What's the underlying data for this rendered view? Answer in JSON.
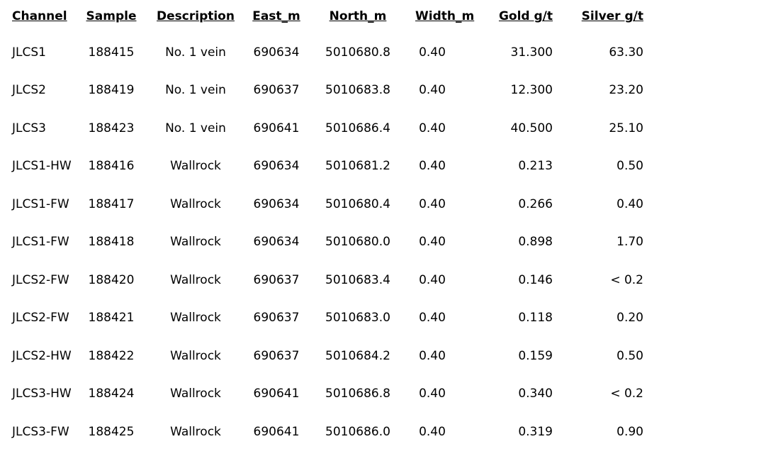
{
  "colors": {
    "text": "#000000",
    "background": "#ffffff"
  },
  "table": {
    "columns": [
      {
        "key": "channel",
        "label": "Channel"
      },
      {
        "key": "sample",
        "label": "Sample"
      },
      {
        "key": "description",
        "label": "Description"
      },
      {
        "key": "east_m",
        "label": "East_m"
      },
      {
        "key": "north_m",
        "label": "North_m"
      },
      {
        "key": "width_m",
        "label": "Width_m"
      },
      {
        "key": "gold_gpt",
        "label": "Gold g/t"
      },
      {
        "key": "silver_gpt",
        "label": "Silver g/t"
      }
    ],
    "rows": [
      [
        "JLCS1",
        "188415",
        "No. 1 vein",
        "690634",
        "5010680.8",
        "0.40",
        "31.300",
        "63.30"
      ],
      [
        "JLCS2",
        "188419",
        "No. 1 vein",
        "690637",
        "5010683.8",
        "0.40",
        "12.300",
        "23.20"
      ],
      [
        "JLCS3",
        "188423",
        "No. 1 vein",
        "690641",
        "5010686.4",
        "0.40",
        "40.500",
        "25.10"
      ],
      [
        "JLCS1-HW",
        "188416",
        "Wallrock",
        "690634",
        "5010681.2",
        "0.40",
        "0.213",
        "0.50"
      ],
      [
        "JLCS1-FW",
        "188417",
        "Wallrock",
        "690634",
        "5010680.4",
        "0.40",
        "0.266",
        "0.40"
      ],
      [
        "JLCS1-FW",
        "188418",
        "Wallrock",
        "690634",
        "5010680.0",
        "0.40",
        "0.898",
        "1.70"
      ],
      [
        "JLCS2-FW",
        "188420",
        "Wallrock",
        "690637",
        "5010683.4",
        "0.40",
        "0.146",
        "< 0.2"
      ],
      [
        "JLCS2-FW",
        "188421",
        "Wallrock",
        "690637",
        "5010683.0",
        "0.40",
        "0.118",
        "0.20"
      ],
      [
        "JLCS2-HW",
        "188422",
        "Wallrock",
        "690637",
        "5010684.2",
        "0.40",
        "0.159",
        "0.50"
      ],
      [
        "JLCS3-HW",
        "188424",
        "Wallrock",
        "690641",
        "5010686.8",
        "0.40",
        "0.340",
        "< 0.2"
      ],
      [
        "JLCS3-FW",
        "188425",
        "Wallrock",
        "690641",
        "5010686.0",
        "0.40",
        "0.319",
        "0.90"
      ]
    ]
  }
}
